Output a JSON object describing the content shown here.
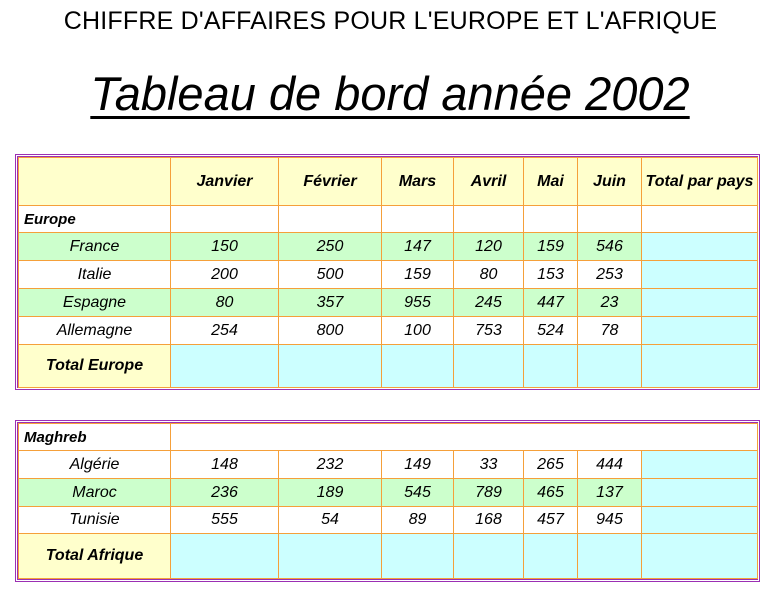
{
  "heading": "CHIFFRE D'AFFAIRES POUR L'EUROPE ET L'AFRIQUE",
  "title": "Tableau de bord année 2002",
  "months": [
    "Janvier",
    "Février",
    "Mars",
    "Avril",
    "Mai",
    "Juin"
  ],
  "total_header": "Total par pays",
  "europe": {
    "label": "Europe",
    "rows": [
      {
        "country": "France",
        "values": [
          "150",
          "250",
          "147",
          "120",
          "159",
          "546"
        ]
      },
      {
        "country": "Italie",
        "values": [
          "200",
          "500",
          "159",
          "80",
          "153",
          "253"
        ]
      },
      {
        "country": "Espagne",
        "values": [
          "80",
          "357",
          "955",
          "245",
          "447",
          "23"
        ]
      },
      {
        "country": "Allemagne",
        "values": [
          "254",
          "800",
          "100",
          "753",
          "524",
          "78"
        ]
      }
    ],
    "total_label": "Total Europe"
  },
  "maghreb": {
    "label": "Maghreb",
    "rows": [
      {
        "country": "Algérie",
        "values": [
          "148",
          "232",
          "149",
          "33",
          "265",
          "444"
        ]
      },
      {
        "country": "Maroc",
        "values": [
          "236",
          "189",
          "545",
          "789",
          "465",
          "137"
        ]
      },
      {
        "country": "Tunisie",
        "values": [
          "555",
          "54",
          "89",
          "168",
          "457",
          "945"
        ]
      }
    ],
    "total_label": "Total Afrique"
  },
  "colors": {
    "frame": "#9b2fb3",
    "grid": "#f5a03a",
    "header_bg": "#ffffcc",
    "alt_row_bg": "#ccffcc",
    "total_bg": "#ccffff",
    "label_blue": "#202080",
    "label_red": "#7a1010"
  }
}
